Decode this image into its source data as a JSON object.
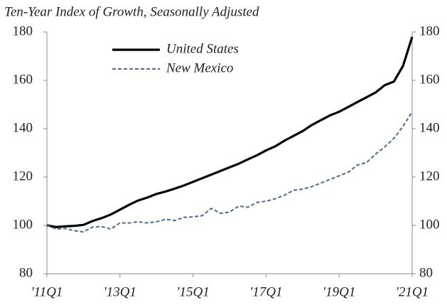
{
  "chart_data": {
    "type": "line",
    "title": "Ten-Year Index of Growth, Seasonally Adjusted",
    "categories": [
      "'11Q1",
      null,
      null,
      null,
      null,
      null,
      null,
      null,
      "'13Q1",
      null,
      null,
      null,
      null,
      null,
      null,
      null,
      "'15Q1",
      null,
      null,
      null,
      null,
      null,
      null,
      null,
      "'17Q1",
      null,
      null,
      null,
      null,
      null,
      null,
      null,
      "'19Q1",
      null,
      null,
      null,
      null,
      null,
      null,
      null,
      "'21Q1"
    ],
    "series": [
      {
        "name": "United States",
        "color": "#000000",
        "dash": "solid",
        "values": [
          100,
          99.3,
          99.6,
          99.8,
          100.2,
          101.8,
          103,
          104.5,
          106.5,
          108.5,
          110.3,
          111.5,
          113,
          114,
          115.2,
          116.5,
          118,
          119.5,
          121,
          122.5,
          124,
          125.5,
          127.3,
          129,
          131,
          132.7,
          135,
          137,
          139,
          141.5,
          143.5,
          145.5,
          147,
          149,
          151,
          153,
          155,
          158,
          159.5,
          166,
          178
        ]
      },
      {
        "name": "New Mexico",
        "color": "#4e6a8a",
        "dash": "dashed",
        "values": [
          100,
          98.5,
          98.7,
          97.8,
          97.3,
          99.3,
          99.5,
          98.5,
          101,
          101,
          101.5,
          101,
          101.5,
          102.5,
          102,
          103.3,
          103.5,
          104,
          107,
          105,
          105.5,
          108,
          107.5,
          109.5,
          110,
          111,
          112.5,
          114.5,
          115,
          116,
          117.5,
          119,
          120.5,
          122,
          125,
          126,
          129.5,
          132.5,
          136,
          141,
          147
        ]
      }
    ],
    "ylim": [
      80,
      180
    ],
    "yticks": [
      80,
      100,
      120,
      140,
      160,
      180
    ],
    "y2lim": [
      80,
      180
    ],
    "y2ticks": [
      80,
      100,
      120,
      140,
      160,
      180
    ],
    "grid": false,
    "legend": "top-left"
  }
}
